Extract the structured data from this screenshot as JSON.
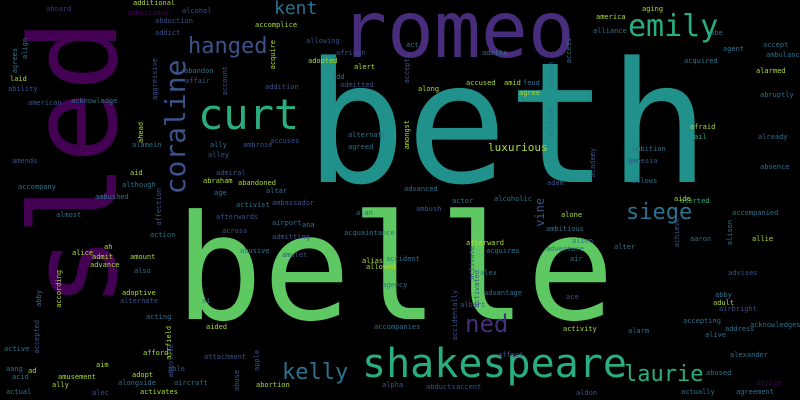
{
  "colors": {
    "background": "#000000",
    "palette": [
      "#440154",
      "#472D7B",
      "#3B528B",
      "#2C728E",
      "#21918C",
      "#28AE80",
      "#5EC962",
      "#ADDC30",
      "#FDE725"
    ]
  },
  "word_cloud": {
    "words": [
      {
        "text": "beth",
        "color": "#21918C"
      },
      {
        "text": "belle",
        "color": "#5EC962"
      },
      {
        "text": "sled",
        "color": "#440154"
      },
      {
        "text": "romeo",
        "color": "#472D7B"
      },
      {
        "text": "shakespeare",
        "color": "#28AE80"
      },
      {
        "text": "curt",
        "color": "#28AE80"
      },
      {
        "text": "coraline",
        "color": "#3B528B"
      },
      {
        "text": "emily",
        "color": "#28AE80"
      },
      {
        "text": "hanged",
        "color": "#3B528B"
      },
      {
        "text": "kent",
        "color": "#2C728E"
      },
      {
        "text": "kelly",
        "color": "#2C728E"
      },
      {
        "text": "laurie",
        "color": "#28AE80"
      },
      {
        "text": "siege",
        "color": "#2C728E"
      },
      {
        "text": "ned",
        "color": "#472D7B"
      },
      {
        "text": "luxurious",
        "color": "#ADDC30"
      },
      {
        "text": "vine",
        "color": "#3B528B"
      },
      {
        "text": "aboard",
        "color": "#472D7B"
      },
      {
        "text": "additional",
        "color": "#ADDC30"
      },
      {
        "text": "alcohol",
        "color": "#3B528B"
      },
      {
        "text": "ambassador",
        "color": "#440154"
      },
      {
        "text": "abduction",
        "color": "#3B528B"
      },
      {
        "text": "addict",
        "color": "#3B528B"
      },
      {
        "text": "accomplice",
        "color": "#ADDC30"
      },
      {
        "text": "ability",
        "color": "#3B528B"
      },
      {
        "text": "american",
        "color": "#3B528B"
      },
      {
        "text": "abandon",
        "color": "#2C728E"
      },
      {
        "text": "affair",
        "color": "#3B528B"
      },
      {
        "text": "account",
        "color": "#3B528B"
      },
      {
        "text": "aggressive",
        "color": "#3B528B"
      },
      {
        "text": "acknowledge",
        "color": "#2C728E"
      },
      {
        "text": "alarmed",
        "color": "#ADDC30"
      },
      {
        "text": "addition",
        "color": "#3B528B"
      },
      {
        "text": "aging",
        "color": "#ADDC30"
      },
      {
        "text": "america",
        "color": "#ADDC30"
      },
      {
        "text": "alliance",
        "color": "#2C728E"
      },
      {
        "text": "abe",
        "color": "#2C728E"
      },
      {
        "text": "accept",
        "color": "#2C728E"
      },
      {
        "text": "agent",
        "color": "#2C728E"
      },
      {
        "text": "ambulance",
        "color": "#2C728E"
      },
      {
        "text": "acquired",
        "color": "#2C728E"
      },
      {
        "text": "alerted",
        "color": "#28AE80"
      },
      {
        "text": "abruptly",
        "color": "#2C728E"
      },
      {
        "text": "ail",
        "color": "#28AE80"
      },
      {
        "text": "already",
        "color": "#2C728E"
      },
      {
        "text": "afraid",
        "color": "#ADDC30"
      },
      {
        "text": "absence",
        "color": "#2C728E"
      },
      {
        "text": "amnesia",
        "color": "#3B528B"
      },
      {
        "text": "allows",
        "color": "#2C728E"
      },
      {
        "text": "aide",
        "color": "#ADDC30"
      },
      {
        "text": "ambition",
        "color": "#2C728E"
      },
      {
        "text": "accompanied",
        "color": "#2C728E"
      },
      {
        "text": "allie",
        "color": "#ADDC30"
      },
      {
        "text": "aaron",
        "color": "#2C728E"
      },
      {
        "text": "alison",
        "color": "#2C728E"
      },
      {
        "text": "achieve",
        "color": "#3B528B"
      },
      {
        "text": "adult",
        "color": "#ADDC30"
      },
      {
        "text": "abby",
        "color": "#2C728E"
      },
      {
        "text": "airbright",
        "color": "#3B528B"
      },
      {
        "text": "advises",
        "color": "#3B528B"
      },
      {
        "text": "accepting",
        "color": "#2C728E"
      },
      {
        "text": "address",
        "color": "#2C728E"
      },
      {
        "text": "acknowledges",
        "color": "#2C728E"
      },
      {
        "text": "alive",
        "color": "#2C728E"
      },
      {
        "text": "alarm",
        "color": "#2C728E"
      },
      {
        "text": "alexander",
        "color": "#2C728E"
      },
      {
        "text": "abused",
        "color": "#2C728E"
      },
      {
        "text": "advice",
        "color": "#440154"
      },
      {
        "text": "actually",
        "color": "#2C728E"
      },
      {
        "text": "agreement",
        "color": "#2C728E"
      },
      {
        "text": "activity",
        "color": "#ADDC30"
      },
      {
        "text": "alone",
        "color": "#ADDC30"
      },
      {
        "text": "ambitious",
        "color": "#2C728E"
      },
      {
        "text": "alien",
        "color": "#2C728E"
      },
      {
        "text": "alter",
        "color": "#2C728E"
      },
      {
        "text": "adventure",
        "color": "#2C728E"
      },
      {
        "text": "air",
        "color": "#2C728E"
      },
      {
        "text": "academy",
        "color": "#3B528B"
      },
      {
        "text": "activate",
        "color": "#3B528B"
      },
      {
        "text": "adam",
        "color": "#3B528B"
      },
      {
        "text": "actor",
        "color": "#2C728E"
      },
      {
        "text": "alcoholic",
        "color": "#2C728E"
      },
      {
        "text": "afterward",
        "color": "#ADDC30"
      },
      {
        "text": "acquires",
        "color": "#2C728E"
      },
      {
        "text": "activated",
        "color": "#3B528B"
      },
      {
        "text": "alex",
        "color": "#2C728E"
      },
      {
        "text": "advantage",
        "color": "#2C728E"
      },
      {
        "text": "albert",
        "color": "#3B528B"
      },
      {
        "text": "accidentally",
        "color": "#3B528B"
      },
      {
        "text": "affect",
        "color": "#3B528B"
      },
      {
        "text": "alpha",
        "color": "#3B528B"
      },
      {
        "text": "abducts",
        "color": "#3B528B"
      },
      {
        "text": "accent",
        "color": "#3B528B"
      },
      {
        "text": "aldon",
        "color": "#3B528B"
      },
      {
        "text": "accused",
        "color": "#ADDC30"
      },
      {
        "text": "amid",
        "color": "#ADDC30"
      },
      {
        "text": "feud",
        "color": "#2C728E"
      },
      {
        "text": "agree",
        "color": "#ADDC30"
      },
      {
        "text": "actress",
        "color": "#2C728E"
      },
      {
        "text": "alison",
        "color": "#2C728E"
      },
      {
        "text": "access",
        "color": "#2C728E"
      },
      {
        "text": "admits",
        "color": "#2C728E"
      },
      {
        "text": "accepts",
        "color": "#3B528B"
      },
      {
        "text": "act",
        "color": "#2C728E"
      },
      {
        "text": "along",
        "color": "#ADDC30"
      },
      {
        "text": "amongst",
        "color": "#ADDC30"
      },
      {
        "text": "alternate",
        "color": "#2C728E"
      },
      {
        "text": "agreed",
        "color": "#2C728E"
      },
      {
        "text": "advanced",
        "color": "#2C728E"
      },
      {
        "text": "ambush",
        "color": "#3B528B"
      },
      {
        "text": "alan",
        "color": "#2C728E"
      },
      {
        "text": "acquaintance",
        "color": "#2C728E"
      },
      {
        "text": "alias",
        "color": "#ADDC30"
      },
      {
        "text": "allowed",
        "color": "#ADDC30"
      },
      {
        "text": "accident",
        "color": "#2C728E"
      },
      {
        "text": "agency",
        "color": "#2C728E"
      },
      {
        "text": "accompanies",
        "color": "#2C728E"
      },
      {
        "text": "acquire",
        "color": "#ADDC30"
      },
      {
        "text": "allowing",
        "color": "#3B528B"
      },
      {
        "text": "adopted",
        "color": "#ADDC30"
      },
      {
        "text": "african",
        "color": "#3B528B"
      },
      {
        "text": "alert",
        "color": "#ADDC30"
      },
      {
        "text": "admitted",
        "color": "#3B528B"
      },
      {
        "text": "add",
        "color": "#2C728E"
      },
      {
        "text": "accuses",
        "color": "#3B528B"
      },
      {
        "text": "ambrose",
        "color": "#3B528B"
      },
      {
        "text": "abraham",
        "color": "#ADDC30"
      },
      {
        "text": "abandoned",
        "color": "#ADDC30"
      },
      {
        "text": "altar",
        "color": "#2C728E"
      },
      {
        "text": "activist",
        "color": "#2C728E"
      },
      {
        "text": "ambassador",
        "color": "#3B528B"
      },
      {
        "text": "admitting",
        "color": "#3B528B"
      },
      {
        "text": "airport",
        "color": "#2C728E"
      },
      {
        "text": "ana",
        "color": "#2C728E"
      },
      {
        "text": "abusive",
        "color": "#2C728E"
      },
      {
        "text": "amulet",
        "color": "#3B528B"
      },
      {
        "text": "afterwards",
        "color": "#3B528B"
      },
      {
        "text": "across",
        "color": "#3B528B"
      },
      {
        "text": "admiral",
        "color": "#3B528B"
      },
      {
        "text": "age",
        "color": "#2C728E"
      },
      {
        "text": "ally",
        "color": "#2C728E"
      },
      {
        "text": "alley",
        "color": "#3B528B"
      },
      {
        "text": "alamein",
        "color": "#2C728E"
      },
      {
        "text": "ahead",
        "color": "#ADDC30"
      },
      {
        "text": "aid",
        "color": "#ADDC30"
      },
      {
        "text": "although",
        "color": "#2C728E"
      },
      {
        "text": "ambushed",
        "color": "#2C728E"
      },
      {
        "text": "affection",
        "color": "#3B528B"
      },
      {
        "text": "action",
        "color": "#2C728E"
      },
      {
        "text": "amount",
        "color": "#ADDC30"
      },
      {
        "text": "also",
        "color": "#2C728E"
      },
      {
        "text": "admit",
        "color": "#ADDC30"
      },
      {
        "text": "alice",
        "color": "#ADDC30"
      },
      {
        "text": "advance",
        "color": "#ADDC30"
      },
      {
        "text": "amusement",
        "color": "#ADDC30"
      },
      {
        "text": "ah",
        "color": "#ADDC30"
      },
      {
        "text": "almost",
        "color": "#2C728E"
      },
      {
        "text": "accompany",
        "color": "#2C728E"
      },
      {
        "text": "amends",
        "color": "#3B528B"
      },
      {
        "text": "agrees",
        "color": "#2C728E"
      },
      {
        "text": "align",
        "color": "#2C728E"
      },
      {
        "text": "laid",
        "color": "#ADDC30"
      },
      {
        "text": "abby",
        "color": "#2C728E"
      },
      {
        "text": "according",
        "color": "#ADDC30"
      },
      {
        "text": "adoptive",
        "color": "#ADDC30"
      },
      {
        "text": "alternate",
        "color": "#3B528B"
      },
      {
        "text": "acting",
        "color": "#2C728E"
      },
      {
        "text": "aided",
        "color": "#ADDC30"
      },
      {
        "text": "ai",
        "color": "#2C728E"
      },
      {
        "text": "airfield",
        "color": "#ADDC30"
      },
      {
        "text": "afford",
        "color": "#ADDC30"
      },
      {
        "text": "absolute",
        "color": "#3B528B"
      },
      {
        "text": "able",
        "color": "#3B528B"
      },
      {
        "text": "attachment",
        "color": "#3B528B"
      },
      {
        "text": "aim",
        "color": "#ADDC30"
      },
      {
        "text": "adopt",
        "color": "#ADDC30"
      },
      {
        "text": "alongside",
        "color": "#2C728E"
      },
      {
        "text": "aircraft",
        "color": "#2C728E"
      },
      {
        "text": "activates",
        "color": "#ADDC30"
      },
      {
        "text": "apple",
        "color": "#3B528B"
      },
      {
        "text": "abuse",
        "color": "#3B528B"
      },
      {
        "text": "abortion",
        "color": "#ADDC30"
      },
      {
        "text": "active",
        "color": "#2C728E"
      },
      {
        "text": "accepted",
        "color": "#3B528B"
      },
      {
        "text": "aang",
        "color": "#2C728E"
      },
      {
        "text": "ad",
        "color": "#ADDC30"
      },
      {
        "text": "acid",
        "color": "#2C728E"
      },
      {
        "text": "ally",
        "color": "#ADDC30"
      },
      {
        "text": "actual",
        "color": "#2C728E"
      },
      {
        "text": "alec",
        "color": "#3B528B"
      },
      {
        "text": "ace",
        "color": "#3B528B"
      }
    ]
  }
}
